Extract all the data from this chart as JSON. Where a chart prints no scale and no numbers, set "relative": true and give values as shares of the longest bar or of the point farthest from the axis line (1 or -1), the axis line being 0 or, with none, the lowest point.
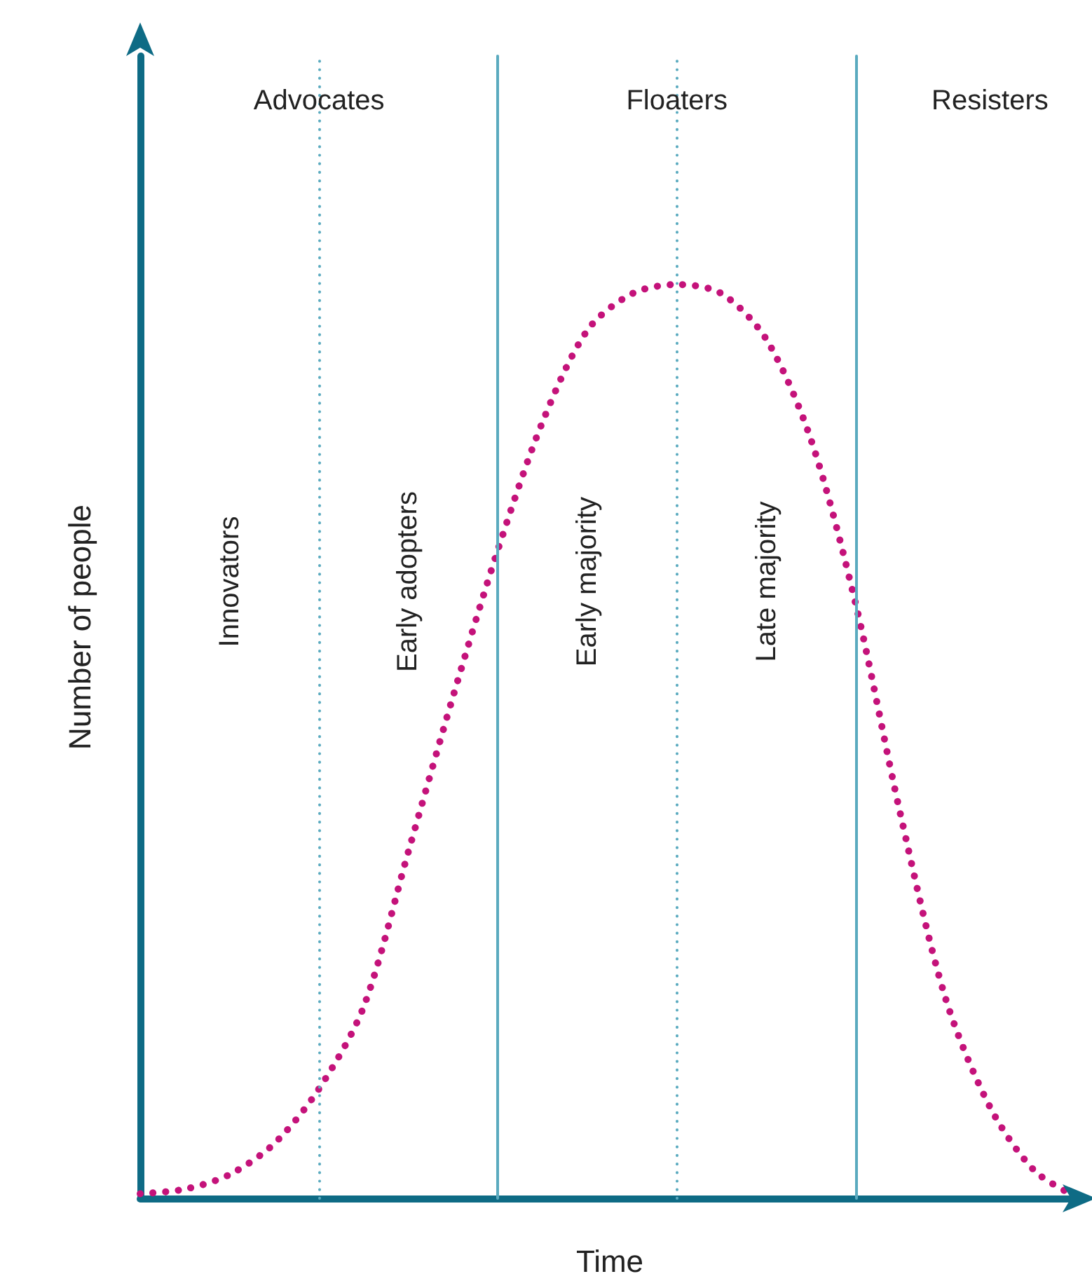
{
  "chart_data": {
    "type": "line",
    "relative": true,
    "xlabel": "Time",
    "ylabel": "Number of people",
    "categories": [
      null,
      null,
      null,
      null,
      null,
      null,
      null,
      null,
      null,
      null,
      null,
      null,
      null,
      null,
      null,
      null,
      null,
      null,
      null,
      null,
      null,
      null
    ],
    "series": [
      {
        "color": "#c4127a",
        "values": [
          0.005,
          0.01,
          0.026,
          0.06,
          0.12,
          0.21,
          0.38,
          0.55,
          0.71,
          0.85,
          0.95,
          0.99,
          1,
          0.99,
          0.94,
          0.83,
          0.65,
          0.42,
          0.22,
          0.1,
          0.03,
          0
        ]
      }
    ],
    "line_style": "dotted",
    "marker": "none",
    "grid": "x",
    "annotations": [
      "Advocates",
      "Floaters",
      "Resisters",
      "Innovators",
      "Early adopters",
      "Early majority",
      "Late majority"
    ]
  }
}
